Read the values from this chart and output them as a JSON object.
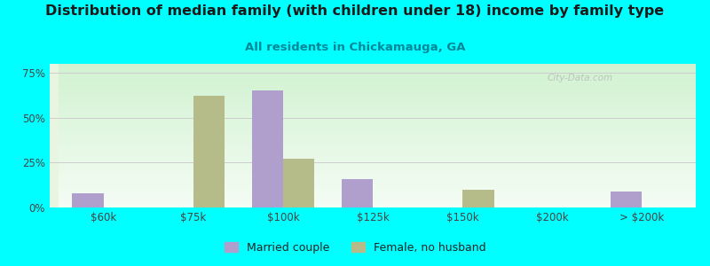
{
  "title": "Distribution of median family (with children under 18) income by family type",
  "subtitle": "All residents in Chickamauga, GA",
  "categories": [
    "$60k",
    "$75k",
    "$100k",
    "$125k",
    "$150k",
    "$200k",
    "> $200k"
  ],
  "married_couple": [
    8.0,
    0.0,
    65.0,
    16.0,
    0.0,
    0.0,
    9.0
  ],
  "female_no_husband": [
    0.0,
    62.0,
    27.0,
    0.0,
    10.0,
    0.0,
    0.0
  ],
  "married_color": "#b09fcc",
  "female_color": "#b5bc8a",
  "bg_color": "#00ffff",
  "yticks": [
    0,
    25,
    50,
    75
  ],
  "ylim": [
    0,
    80
  ],
  "bar_width": 0.35,
  "title_fontsize": 11.5,
  "subtitle_fontsize": 9.5,
  "watermark": "City-Data.com"
}
